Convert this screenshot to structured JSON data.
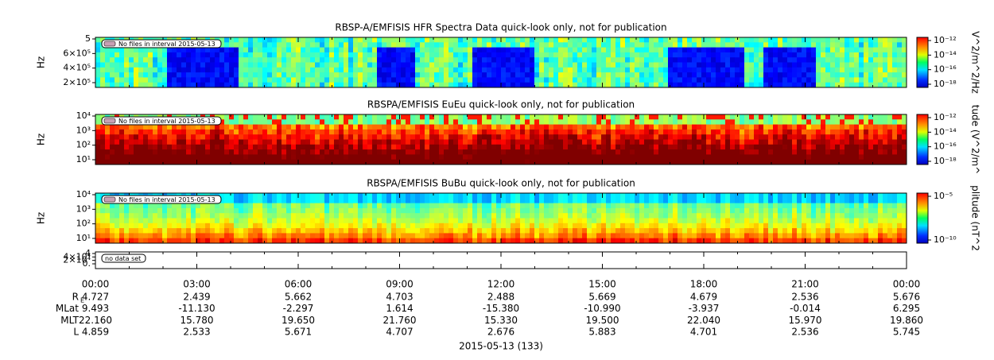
{
  "panels": [
    {
      "title": "RBSP-A/EMFISIS  HFR Spectra Data quick-look only, not for publication",
      "ylabel": "Hz",
      "yticks": [
        "5",
        "6×10⁵",
        "4×10⁵",
        "2×10⁵"
      ],
      "note": "No files in interval 2015-05-13",
      "colorbar_label": "V^2/m^2/Hz",
      "colorbar_ticks": [
        "10⁻¹²",
        "10⁻¹⁴",
        "10⁻¹⁶",
        "10⁻¹⁸"
      ]
    },
    {
      "title": "RBSPA/EMFISIS  EuEu quick-look only, not for publication",
      "ylabel": "Hz",
      "yticks": [
        "10⁴",
        "10³",
        "10²",
        "10¹"
      ],
      "note": "No files in interval 2015-05-13",
      "colorbar_label": "tude (V^2/m^",
      "colorbar_ticks": [
        "10⁻¹²",
        "10⁻¹⁴",
        "10⁻¹⁶",
        "10⁻¹⁸"
      ]
    },
    {
      "title": "RBSPA/EMFISIS  BuBu quick-look only, not for publication",
      "ylabel": "Hz",
      "yticks": [
        "10⁴",
        "10³",
        "10²",
        "10¹"
      ],
      "note": "No files in interval 2015-05-13",
      "colorbar_label": "plitude (nT^2",
      "colorbar_ticks": [
        "10⁻⁵",
        "10⁻¹⁰"
      ]
    },
    {
      "yticks": [
        "4",
        "4×10⁴",
        "2×10⁴",
        "0."
      ],
      "note": "no data set"
    }
  ],
  "time_axis": {
    "ticks": [
      "00:00",
      "03:00",
      "06:00",
      "09:00",
      "12:00",
      "15:00",
      "18:00",
      "21:00",
      "00:00"
    ],
    "rows": [
      {
        "label": "R",
        "label_sub": "E",
        "values": [
          "4.727",
          "2.439",
          "5.662",
          "4.703",
          "2.488",
          "5.669",
          "4.679",
          "2.536",
          "5.676"
        ]
      },
      {
        "label": "MLat",
        "values": [
          "9.493",
          "-11.130",
          "-2.297",
          "1.614",
          "-15.380",
          "-10.990",
          "-3.937",
          "-0.014",
          "6.295"
        ]
      },
      {
        "label": "MLT",
        "values": [
          "22.160",
          "15.780",
          "19.650",
          "21.760",
          "15.330",
          "19.500",
          "22.040",
          "15.970",
          "19.860"
        ]
      },
      {
        "label": "L",
        "values": [
          "4.859",
          "2.533",
          "5.671",
          "4.707",
          "2.676",
          "5.883",
          "4.701",
          "2.536",
          "5.745"
        ]
      }
    ],
    "date": "2015-05-13 (133)"
  }
}
